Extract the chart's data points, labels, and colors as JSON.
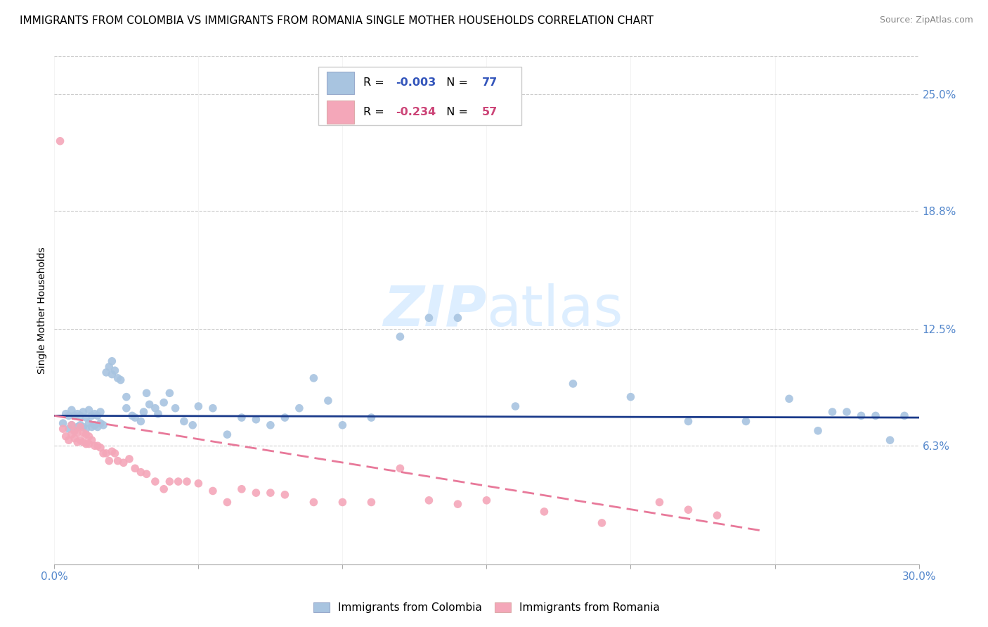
{
  "title": "IMMIGRANTS FROM COLOMBIA VS IMMIGRANTS FROM ROMANIA SINGLE MOTHER HOUSEHOLDS CORRELATION CHART",
  "source": "Source: ZipAtlas.com",
  "ylabel": "Single Mother Households",
  "ytick_labels": [
    "25.0%",
    "18.8%",
    "12.5%",
    "6.3%"
  ],
  "ytick_values": [
    0.25,
    0.188,
    0.125,
    0.063
  ],
  "xlim": [
    0.0,
    0.3
  ],
  "ylim": [
    0.0,
    0.27
  ],
  "colombia_R": "-0.003",
  "colombia_N": "77",
  "romania_R": "-0.234",
  "romania_N": "57",
  "colombia_color": "#a8c4e0",
  "romania_color": "#f4a7b9",
  "colombia_line_color": "#1a3a8a",
  "romania_line_color": "#e8799a",
  "background_color": "#ffffff",
  "watermark_color": "#ddeeff",
  "grid_color": "#cccccc",
  "tick_color": "#5588cc",
  "title_fontsize": 11,
  "axis_label_fontsize": 10,
  "tick_fontsize": 11,
  "colombia_x": [
    0.003,
    0.004,
    0.005,
    0.005,
    0.006,
    0.006,
    0.007,
    0.007,
    0.008,
    0.008,
    0.009,
    0.009,
    0.01,
    0.01,
    0.011,
    0.011,
    0.012,
    0.012,
    0.013,
    0.013,
    0.014,
    0.014,
    0.015,
    0.015,
    0.016,
    0.016,
    0.017,
    0.018,
    0.019,
    0.02,
    0.02,
    0.021,
    0.022,
    0.023,
    0.025,
    0.025,
    0.027,
    0.028,
    0.03,
    0.031,
    0.032,
    0.033,
    0.035,
    0.036,
    0.038,
    0.04,
    0.042,
    0.045,
    0.048,
    0.05,
    0.055,
    0.06,
    0.065,
    0.07,
    0.075,
    0.08,
    0.085,
    0.09,
    0.095,
    0.1,
    0.11,
    0.12,
    0.13,
    0.14,
    0.16,
    0.18,
    0.2,
    0.22,
    0.24,
    0.255,
    0.265,
    0.27,
    0.275,
    0.28,
    0.285,
    0.29,
    0.295
  ],
  "colombia_y": [
    0.075,
    0.08,
    0.072,
    0.079,
    0.074,
    0.082,
    0.071,
    0.079,
    0.073,
    0.08,
    0.074,
    0.079,
    0.073,
    0.081,
    0.072,
    0.078,
    0.075,
    0.082,
    0.073,
    0.079,
    0.074,
    0.08,
    0.073,
    0.079,
    0.075,
    0.081,
    0.074,
    0.102,
    0.105,
    0.108,
    0.101,
    0.103,
    0.099,
    0.098,
    0.083,
    0.089,
    0.079,
    0.078,
    0.076,
    0.081,
    0.091,
    0.085,
    0.083,
    0.08,
    0.086,
    0.091,
    0.083,
    0.076,
    0.074,
    0.084,
    0.083,
    0.069,
    0.078,
    0.077,
    0.074,
    0.078,
    0.083,
    0.099,
    0.087,
    0.074,
    0.078,
    0.121,
    0.131,
    0.131,
    0.084,
    0.096,
    0.089,
    0.076,
    0.076,
    0.088,
    0.071,
    0.081,
    0.081,
    0.079,
    0.079,
    0.066,
    0.079
  ],
  "romania_x": [
    0.002,
    0.003,
    0.004,
    0.005,
    0.006,
    0.006,
    0.007,
    0.007,
    0.008,
    0.008,
    0.009,
    0.009,
    0.01,
    0.01,
    0.011,
    0.011,
    0.012,
    0.012,
    0.013,
    0.014,
    0.015,
    0.016,
    0.017,
    0.018,
    0.019,
    0.02,
    0.021,
    0.022,
    0.024,
    0.026,
    0.028,
    0.03,
    0.032,
    0.035,
    0.038,
    0.04,
    0.043,
    0.046,
    0.05,
    0.055,
    0.06,
    0.065,
    0.07,
    0.075,
    0.08,
    0.09,
    0.1,
    0.11,
    0.12,
    0.13,
    0.14,
    0.15,
    0.17,
    0.19,
    0.21,
    0.22,
    0.23
  ],
  "romania_y": [
    0.225,
    0.072,
    0.068,
    0.066,
    0.074,
    0.069,
    0.071,
    0.067,
    0.07,
    0.065,
    0.073,
    0.066,
    0.07,
    0.065,
    0.069,
    0.064,
    0.068,
    0.064,
    0.066,
    0.063,
    0.063,
    0.062,
    0.059,
    0.059,
    0.055,
    0.06,
    0.059,
    0.055,
    0.054,
    0.056,
    0.051,
    0.049,
    0.048,
    0.044,
    0.04,
    0.044,
    0.044,
    0.044,
    0.043,
    0.039,
    0.033,
    0.04,
    0.038,
    0.038,
    0.037,
    0.033,
    0.033,
    0.033,
    0.051,
    0.034,
    0.032,
    0.034,
    0.028,
    0.022,
    0.033,
    0.029,
    0.026
  ],
  "colombia_trend_x": [
    0.0,
    0.3
  ],
  "colombia_trend_y": [
    0.079,
    0.078
  ],
  "romania_trend_x": [
    0.0,
    0.245
  ],
  "romania_trend_y": [
    0.079,
    0.018
  ],
  "legend_R_col_color": "#3355bb",
  "legend_R_rom_color": "#cc4477",
  "legend_N_col_color": "#3355bb",
  "legend_N_rom_color": "#cc4477"
}
